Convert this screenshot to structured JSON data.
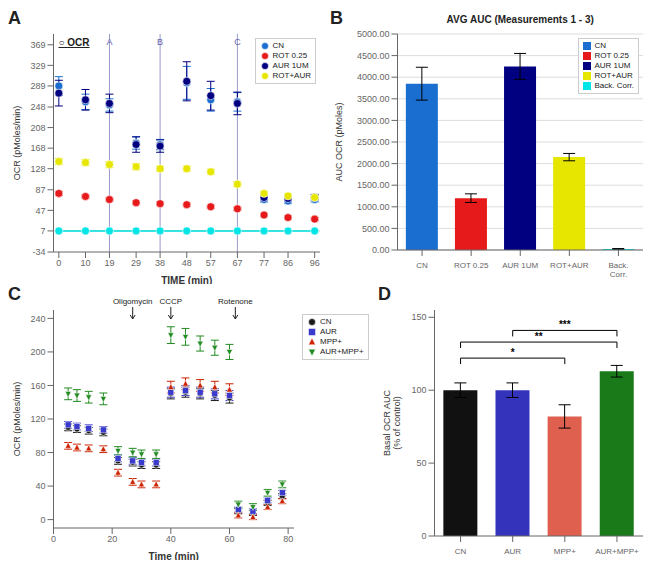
{
  "chart_data": [
    {
      "panel_label": "A",
      "type": "scatter",
      "xlabel": "TIME (min)",
      "ylabel": "OCR (pMoles/min)",
      "annotations": [
        "○ OCR"
      ],
      "vlines": [
        {
          "x": 19,
          "label": "A"
        },
        {
          "x": 38,
          "label": "B"
        },
        {
          "x": 67,
          "label": "C"
        }
      ],
      "hlines": [
        7
      ],
      "xlim": [
        -2,
        98
      ],
      "xticks": [
        0,
        10,
        19,
        29,
        38,
        48,
        57,
        67,
        77,
        86,
        96
      ],
      "ylim": [
        -34,
        390
      ],
      "yticks": [
        -34,
        7,
        47,
        87,
        128,
        168,
        208,
        248,
        289,
        329,
        369
      ],
      "legend": "upper right",
      "x": [
        0,
        10,
        19,
        29,
        38,
        48,
        57,
        67,
        77,
        86,
        96
      ],
      "series": [
        {
          "name": "CN",
          "color": "#1a6ecf",
          "marker": "circle",
          "values": [
            289,
            258,
            252,
            178,
            175,
            295,
            262,
            258,
            68,
            65,
            68
          ],
          "errors": [
            18,
            15,
            12,
            12,
            10,
            32,
            22,
            18,
            5,
            5,
            5
          ]
        },
        {
          "name": "ROT 0.25",
          "color": "#e61a1a",
          "marker": "circle",
          "values": [
            80,
            74,
            68,
            62,
            60,
            58,
            54,
            50,
            38,
            33,
            30
          ],
          "errors": [
            4,
            3,
            3,
            3,
            3,
            3,
            3,
            3,
            3,
            3,
            3
          ]
        },
        {
          "name": "AUR 1UM",
          "color": "#000080",
          "marker": "circle",
          "values": [
            275,
            262,
            255,
            175,
            172,
            298,
            270,
            255,
            72,
            70,
            72
          ],
          "errors": [
            25,
            20,
            18,
            15,
            12,
            38,
            28,
            22,
            6,
            6,
            6
          ]
        },
        {
          "name": "ROT+AUR",
          "color": "#e6e600",
          "marker": "circle",
          "values": [
            142,
            140,
            136,
            132,
            128,
            128,
            122,
            98,
            80,
            75,
            72
          ],
          "errors": [
            6,
            6,
            6,
            6,
            5,
            5,
            5,
            5,
            4,
            4,
            4
          ]
        },
        {
          "type": "line",
          "color": "#00e5e5",
          "marker": "circle",
          "values": [
            7,
            7,
            7,
            7,
            7,
            7,
            7,
            7,
            7,
            7,
            7
          ]
        }
      ]
    },
    {
      "panel_label": "B",
      "type": "bar",
      "title": "AVG AUC (Measurements 1 - 3)",
      "ylabel": "AUC OCR (pMoles)",
      "categories": [
        "CN",
        "ROT 0.25",
        "AUR 1UM",
        "ROT+AUR",
        "Back.\nCorr."
      ],
      "values": [
        3850,
        1200,
        4250,
        2150,
        25
      ],
      "errors": [
        380,
        100,
        300,
        85,
        8
      ],
      "colors": [
        "#1a6ecf",
        "#e61a1a",
        "#000080",
        "#e6e600",
        "#00e5e5"
      ],
      "ylim": [
        0,
        5000
      ],
      "yticks": [
        {
          "value": 0,
          "label": "0.00"
        },
        {
          "value": 500,
          "label": "500.00"
        },
        {
          "value": 1000,
          "label": "1000.00"
        },
        {
          "value": 1500,
          "label": "1500.00"
        },
        {
          "value": 2000,
          "label": "2000.00"
        },
        {
          "value": 2500,
          "label": "2500.00"
        },
        {
          "value": 3000,
          "label": "3000.00"
        },
        {
          "value": 3500,
          "label": "3500.00"
        },
        {
          "value": 4000,
          "label": "4000.00"
        },
        {
          "value": 4500,
          "label": "4500.00"
        },
        {
          "value": 5000,
          "label": "5000.00"
        }
      ],
      "grid": true,
      "legend": "upper right",
      "legend_labels": [
        "CN",
        "ROT 0.25",
        "AUR 1UM",
        "ROT+AUR",
        "Back. Corr."
      ]
    },
    {
      "panel_label": "C",
      "type": "scatter",
      "xlabel": "Time (min)",
      "ylabel": "OCR (pMoles/min)",
      "annotations": [
        {
          "text": "Oligomycin",
          "x": 27
        },
        {
          "text": "CCCP",
          "x": 40
        },
        {
          "text": "Rotenone",
          "x": 62
        }
      ],
      "xlim": [
        0,
        82
      ],
      "xticks": [
        0,
        20,
        40,
        60,
        80
      ],
      "ylim": [
        -10,
        250
      ],
      "yticks": [
        0,
        40,
        80,
        120,
        160,
        200,
        240
      ],
      "legend": "right",
      "x": [
        5,
        8,
        12,
        17,
        22,
        27,
        30,
        35,
        40,
        45,
        50,
        55,
        60,
        63,
        68,
        73,
        78
      ],
      "series": [
        {
          "name": "CN",
          "color": "#1a1a1a",
          "marker": "circle",
          "values": [
            110,
            108,
            106,
            104,
            70,
            68,
            65,
            65,
            150,
            152,
            150,
            148,
            145,
            10,
            8,
            20,
            28
          ],
          "errors": [
            4,
            4,
            4,
            4,
            4,
            4,
            4,
            4,
            6,
            6,
            6,
            6,
            6,
            3,
            3,
            3,
            3
          ]
        },
        {
          "name": "AUR",
          "color": "#3a3acc",
          "marker": "square",
          "values": [
            113,
            111,
            109,
            107,
            73,
            70,
            68,
            68,
            152,
            154,
            152,
            150,
            148,
            12,
            10,
            23,
            32
          ],
          "errors": [
            4,
            4,
            4,
            4,
            4,
            4,
            4,
            4,
            6,
            6,
            6,
            6,
            6,
            3,
            3,
            3,
            3
          ]
        },
        {
          "name": "MPP+",
          "color": "#cc2200",
          "marker": "triangle-up",
          "values": [
            88,
            86,
            85,
            84,
            56,
            45,
            42,
            42,
            158,
            162,
            160,
            158,
            155,
            5,
            3,
            15,
            22
          ],
          "errors": [
            4,
            4,
            4,
            4,
            4,
            4,
            4,
            4,
            7,
            7,
            7,
            7,
            7,
            3,
            3,
            3,
            3
          ]
        },
        {
          "name": "AUR+MPP+",
          "color": "#228B22",
          "marker": "triangle-down",
          "values": [
            150,
            148,
            146,
            144,
            82,
            80,
            78,
            78,
            220,
            218,
            210,
            205,
            200,
            18,
            15,
            32,
            42
          ],
          "errors": [
            7,
            7,
            7,
            7,
            5,
            5,
            5,
            5,
            10,
            10,
            9,
            9,
            9,
            4,
            4,
            4,
            4
          ]
        }
      ]
    },
    {
      "panel_label": "D",
      "type": "bar",
      "ylabel": "Basal OCR AUC\n(% of control)",
      "categories": [
        "CN",
        "AUR",
        "MPP+",
        "AUR+MPP+"
      ],
      "values": [
        100,
        100,
        82,
        113
      ],
      "errors": [
        5,
        5,
        8,
        4
      ],
      "colors": [
        "#111111",
        "#3333bb",
        "#e06050",
        "#1a7a1a"
      ],
      "ylim": [
        0,
        155
      ],
      "yticks": [
        0,
        50,
        100,
        150
      ],
      "brackets": [
        {
          "from": "CN",
          "to": "MPP+",
          "y": 122,
          "label": "*"
        },
        {
          "from": "CN",
          "to": "AUR+MPP+",
          "y": 133,
          "label": "**"
        },
        {
          "from": "AUR",
          "to": "AUR+MPP+",
          "y": 141,
          "label": "***"
        }
      ]
    }
  ]
}
